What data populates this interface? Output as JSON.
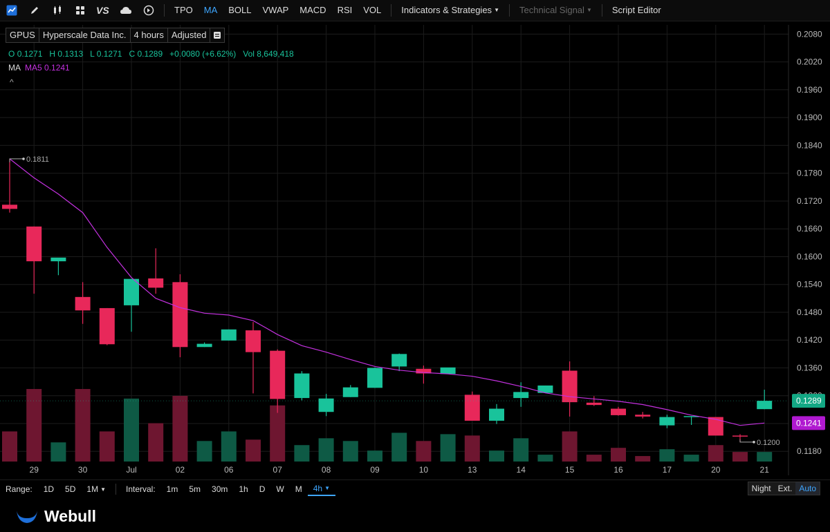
{
  "toolbar": {
    "indicators": [
      {
        "label": "TPO",
        "active": false
      },
      {
        "label": "MA",
        "active": true
      },
      {
        "label": "BOLL",
        "active": false
      },
      {
        "label": "VWAP",
        "active": false
      },
      {
        "label": "MACD",
        "active": false
      },
      {
        "label": "RSI",
        "active": false
      },
      {
        "label": "VOL",
        "active": false
      }
    ],
    "strategies_label": "Indicators & Strategies",
    "technical_signal_label": "Technical Signal",
    "script_editor_label": "Script Editor"
  },
  "symbol": {
    "ticker": "GPUS",
    "name": "Hyperscale Data Inc.",
    "interval": "4 hours",
    "adjustment": "Adjusted"
  },
  "ohlc": {
    "open_label": "O",
    "open": "0.1271",
    "high_label": "H",
    "high": "0.1313",
    "low_label": "L",
    "low": "0.1271",
    "close_label": "C",
    "close": "0.1289",
    "change": "+0.0080 (+6.62%)",
    "vol_label": "Vol",
    "volume": "8,649,418"
  },
  "ma": {
    "name": "MA",
    "label": "MA5",
    "value": "0.1241"
  },
  "colors": {
    "up": "#19c39b",
    "down": "#e8285a",
    "ma": "#c431e0",
    "grid": "#1c1c1c",
    "axis_text": "#bbbbbb"
  },
  "chart_data": {
    "type": "candlestick",
    "y_ticks": [
      "0.2080",
      "0.2020",
      "0.1960",
      "0.1900",
      "0.1840",
      "0.1780",
      "0.1720",
      "0.1660",
      "0.1600",
      "0.1540",
      "0.1480",
      "0.1420",
      "0.1360",
      "0.1300",
      "0.1240",
      "0.1180"
    ],
    "ylim": [
      0.1158,
      0.21
    ],
    "x_labels": [
      {
        "label": "29",
        "index": 1
      },
      {
        "label": "30",
        "index": 3
      },
      {
        "label": "Jul",
        "index": 5
      },
      {
        "label": "02",
        "index": 7
      },
      {
        "label": "06",
        "index": 9
      },
      {
        "label": "07",
        "index": 11
      },
      {
        "label": "08",
        "index": 13
      },
      {
        "label": "09",
        "index": 15
      },
      {
        "label": "10",
        "index": 17
      },
      {
        "label": "13",
        "index": 19
      },
      {
        "label": "14",
        "index": 21
      },
      {
        "label": "15",
        "index": 23
      },
      {
        "label": "16",
        "index": 25
      },
      {
        "label": "17",
        "index": 27
      },
      {
        "label": "20",
        "index": 29
      },
      {
        "label": "21",
        "index": 31
      }
    ],
    "candles": [
      {
        "o": 0.1712,
        "h": 0.1811,
        "l": 0.1695,
        "c": 0.1703
      },
      {
        "o": 0.1665,
        "h": 0.1665,
        "l": 0.152,
        "c": 0.159
      },
      {
        "o": 0.159,
        "h": 0.1597,
        "l": 0.156,
        "c": 0.1598
      },
      {
        "o": 0.1513,
        "h": 0.1545,
        "l": 0.1455,
        "c": 0.1484
      },
      {
        "o": 0.1489,
        "h": 0.1489,
        "l": 0.1409,
        "c": 0.1411
      },
      {
        "o": 0.1495,
        "h": 0.155,
        "l": 0.1438,
        "c": 0.1552
      },
      {
        "o": 0.1553,
        "h": 0.1618,
        "l": 0.152,
        "c": 0.1533
      },
      {
        "o": 0.1545,
        "h": 0.1562,
        "l": 0.1383,
        "c": 0.1405
      },
      {
        "o": 0.1405,
        "h": 0.1415,
        "l": 0.1405,
        "c": 0.1412
      },
      {
        "o": 0.1419,
        "h": 0.1443,
        "l": 0.1419,
        "c": 0.1443
      },
      {
        "o": 0.1441,
        "h": 0.1459,
        "l": 0.1305,
        "c": 0.1394
      },
      {
        "o": 0.1397,
        "h": 0.14,
        "l": 0.1263,
        "c": 0.1293
      },
      {
        "o": 0.1295,
        "h": 0.1353,
        "l": 0.129,
        "c": 0.1348
      },
      {
        "o": 0.1265,
        "h": 0.1304,
        "l": 0.1256,
        "c": 0.1294
      },
      {
        "o": 0.1297,
        "h": 0.1323,
        "l": 0.1297,
        "c": 0.1318
      },
      {
        "o": 0.1317,
        "h": 0.1361,
        "l": 0.1317,
        "c": 0.136
      },
      {
        "o": 0.1363,
        "h": 0.1391,
        "l": 0.1353,
        "c": 0.139
      },
      {
        "o": 0.1358,
        "h": 0.1365,
        "l": 0.1326,
        "c": 0.1348
      },
      {
        "o": 0.1347,
        "h": 0.136,
        "l": 0.1347,
        "c": 0.1361
      },
      {
        "o": 0.1302,
        "h": 0.1309,
        "l": 0.1247,
        "c": 0.1246
      },
      {
        "o": 0.1246,
        "h": 0.1282,
        "l": 0.1239,
        "c": 0.1272
      },
      {
        "o": 0.1295,
        "h": 0.1329,
        "l": 0.1276,
        "c": 0.1308
      },
      {
        "o": 0.1306,
        "h": 0.1322,
        "l": 0.1306,
        "c": 0.1322
      },
      {
        "o": 0.1354,
        "h": 0.1374,
        "l": 0.1255,
        "c": 0.1286
      },
      {
        "o": 0.1285,
        "h": 0.1299,
        "l": 0.1278,
        "c": 0.128
      },
      {
        "o": 0.1272,
        "h": 0.1276,
        "l": 0.1257,
        "c": 0.1258
      },
      {
        "o": 0.1259,
        "h": 0.1265,
        "l": 0.1251,
        "c": 0.1255
      },
      {
        "o": 0.1236,
        "h": 0.1259,
        "l": 0.123,
        "c": 0.1254
      },
      {
        "o": 0.1254,
        "h": 0.1256,
        "l": 0.1237,
        "c": 0.1256
      },
      {
        "o": 0.1254,
        "h": 0.1254,
        "l": 0.1215,
        "c": 0.1214
      },
      {
        "o": 0.1214,
        "h": 0.1217,
        "l": 0.12,
        "c": 0.1212
      },
      {
        "o": 0.1271,
        "h": 0.1313,
        "l": 0.1271,
        "c": 0.1289
      }
    ],
    "volume": [
      22,
      53,
      14,
      53,
      22,
      46,
      28,
      48,
      15,
      22,
      16,
      41,
      12,
      17,
      15,
      8,
      21,
      15,
      20,
      19,
      8,
      17,
      5,
      22,
      5,
      10,
      4,
      9,
      5,
      12,
      7,
      7
    ],
    "ma5": [
      0.1811,
      0.177,
      0.1735,
      0.1695,
      0.162,
      0.1555,
      0.151,
      0.149,
      0.1478,
      0.1474,
      0.1462,
      0.1432,
      0.1408,
      0.1394,
      0.1378,
      0.1363,
      0.1355,
      0.135,
      0.1347,
      0.1342,
      0.1332,
      0.132,
      0.1306,
      0.1298,
      0.1293,
      0.1288,
      0.1281,
      0.127,
      0.1258,
      0.1249,
      0.1236,
      0.1241
    ],
    "high_marker": {
      "label": "0.1811",
      "value": 0.1811,
      "index": 0
    },
    "low_marker": {
      "label": "0.1200",
      "value": 0.12,
      "index": 30
    },
    "last_price": {
      "label": "0.1289",
      "value": 0.1289
    },
    "ma_price": {
      "label": "0.1241",
      "value": 0.1241
    }
  },
  "range_bar": {
    "range_label": "Range:",
    "ranges": [
      "1D",
      "5D",
      "1M"
    ],
    "interval_label": "Interval:",
    "intervals": [
      "1m",
      "5m",
      "30m",
      "1h",
      "D",
      "W",
      "M",
      "4h"
    ],
    "active_interval": "4h",
    "sessions": [
      "Night",
      "Ext.",
      "Auto"
    ],
    "active_session": "Auto"
  },
  "brand": "Webull"
}
